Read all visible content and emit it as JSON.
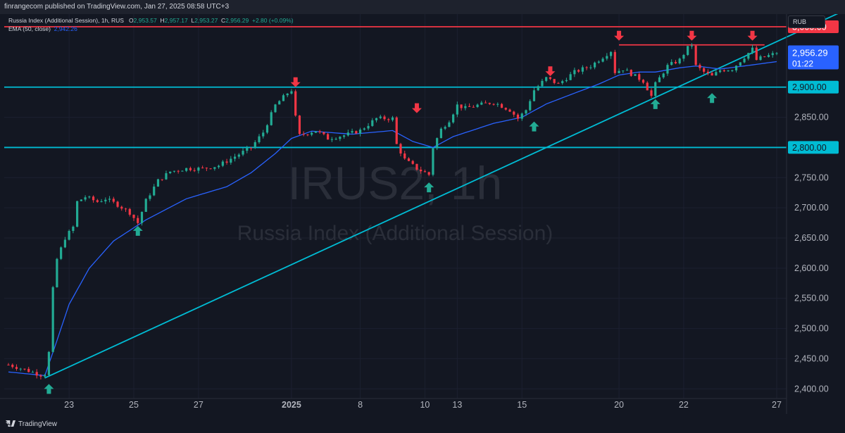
{
  "header": {
    "publisher_text": "finrangecom published on TradingView.com, Jan 27, 2025 08:58 UTC+3"
  },
  "legend": {
    "symbol": "Russia Index (Additional Session), 1h, RUS",
    "o_label": "O",
    "o": "2,953.57",
    "h_label": "H",
    "h": "2,957.17",
    "l_label": "L",
    "l": "2,953.27",
    "c_label": "C",
    "c": "2,956.29",
    "change": "+2.80 (+0.09%)",
    "ema_label": "EMA (50, close)",
    "ema_value": "2,942.26"
  },
  "currency": "RUB",
  "footer": {
    "brand": "TradingView"
  },
  "colors": {
    "background": "#131722",
    "up": "#22ab94",
    "down": "#f23645",
    "ema": "#2962ff",
    "line_cyan": "#00bcd4",
    "line_red": "#f23645",
    "price_label_bg": "#2962ff"
  },
  "chart_data": {
    "type": "candlestick",
    "watermark_symbol": "IRUS2, 1h",
    "watermark_name": "Russia Index (Additional Session)",
    "y_ticks": [
      "2,400.00",
      "2,450.00",
      "2,500.00",
      "2,550.00",
      "2,600.00",
      "2,650.00",
      "2,700.00",
      "2,750.00",
      "2,850.00"
    ],
    "ylim": [
      2384,
      3021
    ],
    "x_ticks": [
      {
        "label": "23",
        "idx": 15
      },
      {
        "label": "25",
        "idx": 31
      },
      {
        "label": "27",
        "idx": 47
      },
      {
        "label": "2025",
        "idx": 70,
        "bold": true
      },
      {
        "label": "8",
        "idx": 87
      },
      {
        "label": "10",
        "idx": 103
      },
      {
        "label": "13",
        "idx": 111
      },
      {
        "label": "15",
        "idx": 127
      },
      {
        "label": "20",
        "idx": 151
      },
      {
        "label": "22",
        "idx": 167
      },
      {
        "label": "27",
        "idx": 190
      }
    ],
    "candles_count": 191,
    "price_anchors": [
      [
        0,
        2440
      ],
      [
        4,
        2432
      ],
      [
        8,
        2423
      ],
      [
        9,
        2425
      ],
      [
        10,
        2460
      ],
      [
        11,
        2565
      ],
      [
        12,
        2615
      ],
      [
        14,
        2650
      ],
      [
        16,
        2668
      ],
      [
        17,
        2710
      ],
      [
        19,
        2718
      ],
      [
        22,
        2710
      ],
      [
        24,
        2715
      ],
      [
        27,
        2705
      ],
      [
        30,
        2692
      ],
      [
        32,
        2675
      ],
      [
        34,
        2712
      ],
      [
        37,
        2745
      ],
      [
        40,
        2760
      ],
      [
        44,
        2765
      ],
      [
        48,
        2765
      ],
      [
        52,
        2770
      ],
      [
        56,
        2785
      ],
      [
        60,
        2800
      ],
      [
        63,
        2825
      ],
      [
        66,
        2870
      ],
      [
        69,
        2890
      ],
      [
        70,
        2895
      ],
      [
        71,
        2850
      ],
      [
        72,
        2820
      ],
      [
        76,
        2828
      ],
      [
        79,
        2815
      ],
      [
        83,
        2820
      ],
      [
        87,
        2828
      ],
      [
        91,
        2848
      ],
      [
        95,
        2848
      ],
      [
        96,
        2805
      ],
      [
        98,
        2780
      ],
      [
        101,
        2765
      ],
      [
        104,
        2755
      ],
      [
        105,
        2800
      ],
      [
        107,
        2830
      ],
      [
        109,
        2845
      ],
      [
        111,
        2870
      ],
      [
        113,
        2865
      ],
      [
        116,
        2870
      ],
      [
        120,
        2875
      ],
      [
        124,
        2862
      ],
      [
        126,
        2848
      ],
      [
        128,
        2862
      ],
      [
        130,
        2895
      ],
      [
        133,
        2915
      ],
      [
        136,
        2905
      ],
      [
        140,
        2925
      ],
      [
        144,
        2935
      ],
      [
        147,
        2950
      ],
      [
        149,
        2960
      ],
      [
        150,
        2925
      ],
      [
        152,
        2930
      ],
      [
        155,
        2918
      ],
      [
        157,
        2910
      ],
      [
        159,
        2885
      ],
      [
        160,
        2905
      ],
      [
        163,
        2935
      ],
      [
        166,
        2945
      ],
      [
        168,
        2965
      ],
      [
        169,
        2970
      ],
      [
        170,
        2935
      ],
      [
        172,
        2925
      ],
      [
        174,
        2918
      ],
      [
        176,
        2928
      ],
      [
        179,
        2930
      ],
      [
        182,
        2950
      ],
      [
        184,
        2963
      ],
      [
        185,
        2945
      ],
      [
        186,
        2948
      ],
      [
        190,
        2956.29
      ]
    ],
    "ema": {
      "name": "EMA (50, close)",
      "anchors": [
        [
          0,
          2428
        ],
        [
          9,
          2422
        ],
        [
          12,
          2480
        ],
        [
          15,
          2540
        ],
        [
          20,
          2600
        ],
        [
          26,
          2645
        ],
        [
          34,
          2680
        ],
        [
          44,
          2715
        ],
        [
          54,
          2735
        ],
        [
          60,
          2758
        ],
        [
          66,
          2790
        ],
        [
          70,
          2815
        ],
        [
          75,
          2827
        ],
        [
          85,
          2822
        ],
        [
          95,
          2828
        ],
        [
          100,
          2810
        ],
        [
          105,
          2800
        ],
        [
          110,
          2818
        ],
        [
          120,
          2840
        ],
        [
          127,
          2850
        ],
        [
          133,
          2872
        ],
        [
          140,
          2890
        ],
        [
          146,
          2905
        ],
        [
          151,
          2920
        ],
        [
          156,
          2925
        ],
        [
          160,
          2925
        ],
        [
          166,
          2932
        ],
        [
          170,
          2935
        ],
        [
          176,
          2930
        ],
        [
          182,
          2935
        ],
        [
          190,
          2942.26
        ]
      ]
    },
    "levels": [
      {
        "price": 3000.0,
        "label": "3,000.00",
        "color": "#f23645"
      },
      {
        "price": 2900.0,
        "label": "2,900.00",
        "color": "#00bcd4"
      },
      {
        "price": 2800.0,
        "label": "2,800.00",
        "color": "#00bcd4"
      }
    ],
    "resistance_segment": {
      "price": 2970,
      "from_idx": 151,
      "to_idx": 187
    },
    "trendline": {
      "from": [
        9,
        2418
      ],
      "to": [
        211,
        3040
      ]
    },
    "last_price": {
      "value": 2956.29,
      "label": "2,956.29",
      "countdown": "01:22"
    },
    "down_arrows": [
      [
        71,
        2900
      ],
      [
        101,
        2857
      ],
      [
        134,
        2918
      ],
      [
        151,
        2977
      ],
      [
        169,
        2977
      ],
      [
        184,
        2977
      ]
    ],
    "up_arrows": [
      [
        10,
        2408
      ],
      [
        32,
        2670
      ],
      [
        104,
        2742
      ],
      [
        130,
        2843
      ],
      [
        160,
        2880
      ],
      [
        174,
        2890
      ]
    ]
  }
}
